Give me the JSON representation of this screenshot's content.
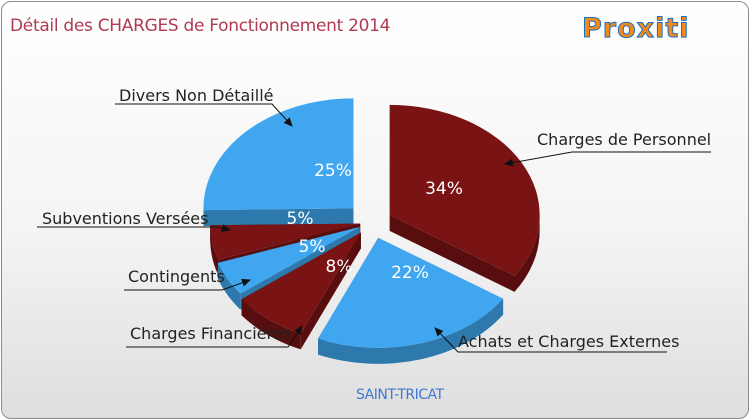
{
  "header": {
    "title": "Détail des CHARGES de Fonctionnement 2014",
    "logo_text": "Proxiti"
  },
  "footer": {
    "commune": "SAINT-TRICAT"
  },
  "colors": {
    "blue": "#3fa6ef",
    "blue_dark": "#2e84c8",
    "red": "#7a1414",
    "red_dark": "#560c0c",
    "title": "#b03a52",
    "commune": "#3f78d6"
  },
  "chart_data": {
    "type": "pie",
    "title": "Détail des CHARGES de Fonctionnement 2014",
    "subtitle": "SAINT-TRICAT",
    "slices": [
      {
        "label": "Charges de Personnel",
        "value": 34,
        "display": "34%",
        "color": "#7a1414"
      },
      {
        "label": "Achats et Charges Externes",
        "value": 22,
        "display": "22%",
        "color": "#3fa6ef"
      },
      {
        "label": "Charges Financières",
        "value": 8,
        "display": "8%",
        "color": "#7a1414"
      },
      {
        "label": "Contingents",
        "value": 5,
        "display": "5%",
        "color": "#3fa6ef"
      },
      {
        "label": "Subventions Versées",
        "value": 5,
        "display": "5%",
        "color": "#7a1414"
      },
      {
        "label": "Divers Non Détaillé",
        "value": 25,
        "display": "25%",
        "color": "#3fa6ef"
      }
    ]
  }
}
